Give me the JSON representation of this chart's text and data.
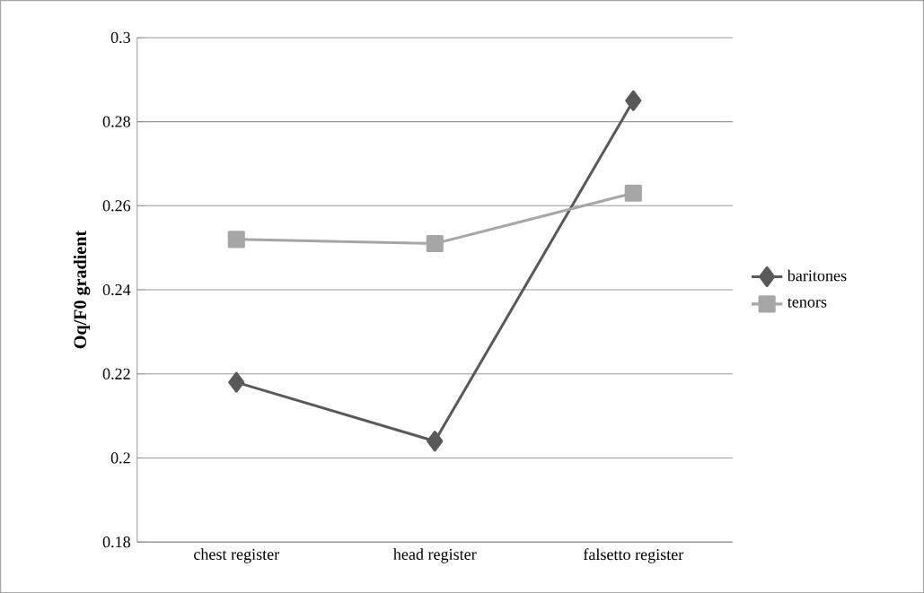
{
  "chart_data": {
    "type": "line",
    "ylabel": "Oq/F0 gradient",
    "categories": [
      "chest register",
      "head register",
      "falsetto register"
    ],
    "series": [
      {
        "name": "baritones",
        "color": "#595959",
        "marker": "diamond",
        "values": [
          0.218,
          0.204,
          0.285
        ]
      },
      {
        "name": "tenors",
        "color": "#a6a6a6",
        "marker": "square",
        "values": [
          0.252,
          0.251,
          0.263
        ]
      }
    ],
    "ylim": [
      0.18,
      0.3
    ],
    "yticks": [
      0.18,
      0.2,
      0.22,
      0.24,
      0.26,
      0.28,
      0.3
    ],
    "grid": "y",
    "legend": "right",
    "line_style": "solid"
  }
}
